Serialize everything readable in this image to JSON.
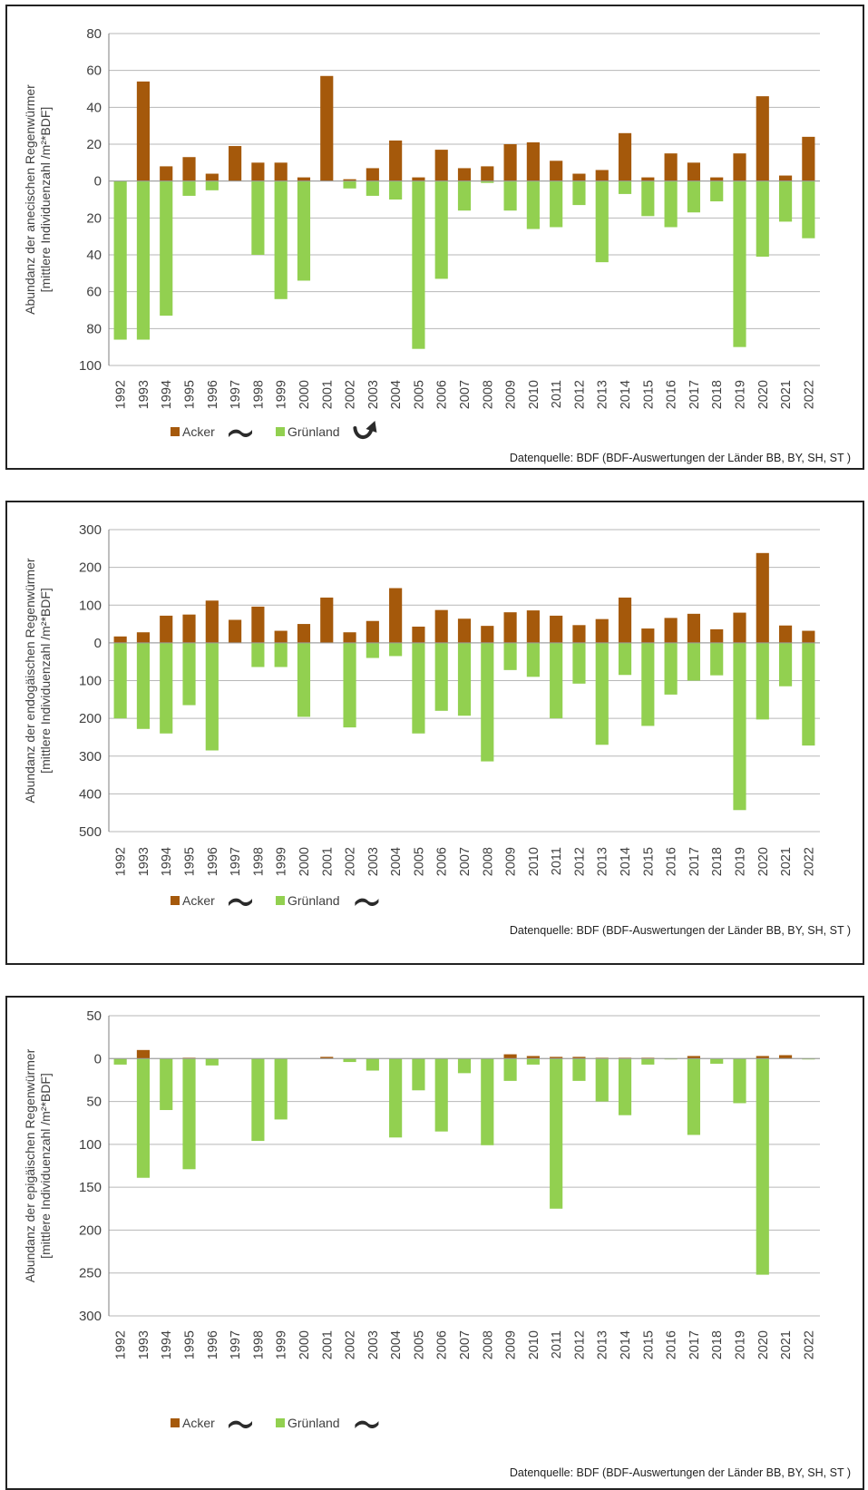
{
  "chart_data": [
    {
      "type": "bar",
      "title": "",
      "ylabel": "Abundanz der anecischen Regenwürmer\n[mittlere Individuenzahl /m²*BDF]",
      "xlabel": "",
      "y_tick_labels": [
        "80",
        "60",
        "40",
        "20",
        "0",
        "20",
        "40",
        "60",
        "80",
        "100"
      ],
      "y_tick_values": [
        80,
        60,
        40,
        20,
        0,
        -20,
        -40,
        -60,
        -80,
        -100
      ],
      "ylim": [
        -100,
        80
      ],
      "grid": true,
      "legend_position": "bottom-left",
      "categories": [
        "1992",
        "1993",
        "1994",
        "1995",
        "1996",
        "1997",
        "1998",
        "1999",
        "2000",
        "2001",
        "2002",
        "2003",
        "2004",
        "2005",
        "2006",
        "2007",
        "2008",
        "2009",
        "2010",
        "2011",
        "2012",
        "2013",
        "2014",
        "2015",
        "2016",
        "2017",
        "2018",
        "2019",
        "2020",
        "2021",
        "2022"
      ],
      "series": [
        {
          "name": "Acker",
          "color": "#A5590B",
          "trend_icon": "tilde-trend-icon",
          "values": [
            0,
            54,
            8,
            13,
            4,
            19,
            10,
            10,
            2,
            57,
            1,
            7,
            22,
            2,
            17,
            7,
            8,
            20,
            21,
            11,
            4,
            6,
            26,
            2,
            15,
            10,
            2,
            15,
            46,
            3,
            24
          ]
        },
        {
          "name": "Grünland",
          "color": "#92D050",
          "trend_icon": "curved-up-arrow-icon",
          "values": [
            -86,
            -86,
            -73,
            -8,
            -5,
            0,
            -40,
            -64,
            -54,
            0,
            -4,
            -8,
            -10,
            -91,
            -53,
            -16,
            -1,
            -16,
            -26,
            -25,
            -13,
            -44,
            -7,
            -19,
            -25,
            -17,
            -11,
            -90,
            -41,
            -22,
            -31
          ]
        }
      ],
      "source_note": "Datenquelle: BDF (BDF-Auswertungen der Länder BB, BY, SH, ST )"
    },
    {
      "type": "bar",
      "title": "",
      "ylabel": "Abundanz der endogäischen Regenwürmer\n[mittlere Individuenzahl /m²*BDF]",
      "xlabel": "",
      "y_tick_labels": [
        "300",
        "200",
        "100",
        "0",
        "100",
        "200",
        "300",
        "400",
        "500"
      ],
      "y_tick_values": [
        300,
        200,
        100,
        0,
        -100,
        -200,
        -300,
        -400,
        -500
      ],
      "ylim": [
        -500,
        300
      ],
      "grid": true,
      "legend_position": "bottom-left",
      "categories": [
        "1992",
        "1993",
        "1994",
        "1995",
        "1996",
        "1997",
        "1998",
        "1999",
        "2000",
        "2001",
        "2002",
        "2003",
        "2004",
        "2005",
        "2006",
        "2007",
        "2008",
        "2009",
        "2010",
        "2011",
        "2012",
        "2013",
        "2014",
        "2015",
        "2016",
        "2017",
        "2018",
        "2019",
        "2020",
        "2021",
        "2022"
      ],
      "series": [
        {
          "name": "Acker",
          "color": "#A5590B",
          "trend_icon": "tilde-trend-icon",
          "values": [
            17,
            28,
            72,
            75,
            112,
            61,
            96,
            32,
            50,
            120,
            28,
            58,
            145,
            43,
            87,
            64,
            45,
            81,
            86,
            72,
            47,
            63,
            120,
            38,
            66,
            77,
            36,
            80,
            238,
            46,
            32
          ]
        },
        {
          "name": "Grünland",
          "color": "#92D050",
          "trend_icon": "tilde-trend-icon",
          "values": [
            -200,
            -228,
            -240,
            -165,
            -285,
            0,
            -64,
            -64,
            -196,
            0,
            -224,
            -40,
            -35,
            -240,
            -180,
            -193,
            -314,
            -72,
            -90,
            -200,
            -108,
            -270,
            -85,
            -220,
            -137,
            -100,
            -86,
            -443,
            -203,
            -115,
            -272
          ]
        }
      ],
      "source_note": "Datenquelle: BDF (BDF-Auswertungen der Länder BB, BY, SH, ST )"
    },
    {
      "type": "bar",
      "title": "",
      "ylabel": "Abundanz der epigäischen Regenwürmer\n[mittlere Individuenzahl /m²*BDF]",
      "xlabel": "",
      "y_tick_labels": [
        "50",
        "0",
        "50",
        "100",
        "150",
        "200",
        "250",
        "300"
      ],
      "y_tick_values": [
        50,
        0,
        -50,
        -100,
        -150,
        -200,
        -250,
        -300
      ],
      "ylim": [
        -300,
        50
      ],
      "grid": true,
      "legend_position": "bottom-left",
      "categories": [
        "1992",
        "1993",
        "1994",
        "1995",
        "1996",
        "1997",
        "1998",
        "1999",
        "2000",
        "2001",
        "2002",
        "2003",
        "2004",
        "2005",
        "2006",
        "2007",
        "2008",
        "2009",
        "2010",
        "2011",
        "2012",
        "2013",
        "2014",
        "2015",
        "2016",
        "2017",
        "2018",
        "2019",
        "2020",
        "2021",
        "2022"
      ],
      "series": [
        {
          "name": "Acker",
          "color": "#A5590B",
          "trend_icon": "tilde-trend-icon",
          "values": [
            0,
            10,
            0,
            1,
            0,
            0,
            0,
            0,
            0,
            2,
            0,
            0,
            0,
            0,
            0,
            0,
            0,
            5,
            3,
            2,
            2,
            1,
            1,
            1,
            0,
            3,
            0,
            0,
            3,
            4,
            0
          ]
        },
        {
          "name": "Grünland",
          "color": "#92D050",
          "trend_icon": "tilde-trend-icon",
          "values": [
            -7,
            -139,
            -60,
            -129,
            -8,
            0,
            -96,
            -71,
            0,
            0,
            -4,
            -14,
            -92,
            -37,
            -85,
            -17,
            -101,
            -26,
            -7,
            -175,
            -26,
            -50,
            -66,
            -7,
            -1,
            -89,
            -6,
            -52,
            -252,
            0,
            -1
          ]
        }
      ],
      "source_note": "Datenquelle: BDF (BDF-Auswertungen der Länder BB, BY, SH, ST )"
    }
  ]
}
